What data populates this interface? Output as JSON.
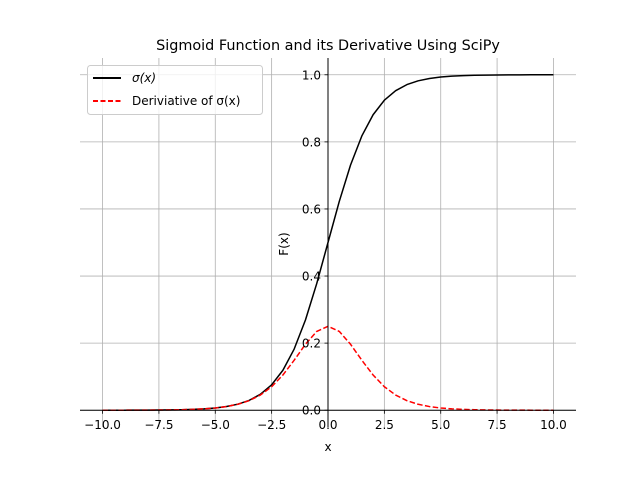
{
  "chart_data": {
    "type": "line",
    "title": "Sigmoid Function and its Derivative Using SciPy",
    "xlabel": "x",
    "ylabel": "F(x)",
    "xlim": [
      -11,
      11
    ],
    "ylim": [
      -0.05,
      1.05
    ],
    "grid": true,
    "spines": "centered at zero",
    "legend_position": "upper-left",
    "x_ticks": [
      -10,
      -7.5,
      -5,
      -2.5,
      0,
      2.5,
      5,
      7.5,
      10
    ],
    "x_tick_labels": [
      "−10.0",
      "−7.5",
      "−5.0",
      "−2.5",
      "0.0",
      "2.5",
      "5.0",
      "7.5",
      "10.0"
    ],
    "y_ticks": [
      0,
      0.2,
      0.4,
      0.6,
      0.8,
      1.0
    ],
    "y_tick_labels": [
      "0.0",
      "0.2",
      "0.4",
      "0.6",
      "0.8",
      "1.0"
    ],
    "x": [
      -10,
      -9.5,
      -9,
      -8.5,
      -8,
      -7.5,
      -7,
      -6.5,
      -6,
      -5.5,
      -5,
      -4.5,
      -4,
      -3.5,
      -3,
      -2.5,
      -2,
      -1.5,
      -1,
      -0.5,
      0,
      0.5,
      1,
      1.5,
      2,
      2.5,
      3,
      3.5,
      4,
      4.5,
      5,
      5.5,
      6,
      6.5,
      7,
      7.5,
      8,
      8.5,
      9,
      9.5,
      10
    ],
    "series": [
      {
        "name": "σ(x)",
        "color": "#000000",
        "style": "solid",
        "values": [
          0.0,
          0.0001,
          0.0001,
          0.0002,
          0.0003,
          0.0006,
          0.0009,
          0.0015,
          0.0025,
          0.0041,
          0.0067,
          0.011,
          0.018,
          0.0293,
          0.0474,
          0.0759,
          0.1192,
          0.1824,
          0.2689,
          0.3775,
          0.5,
          0.6225,
          0.7311,
          0.8176,
          0.8808,
          0.9241,
          0.9526,
          0.9707,
          0.982,
          0.989,
          0.9933,
          0.9959,
          0.9975,
          0.9985,
          0.9991,
          0.9994,
          0.9997,
          0.9998,
          0.9999,
          0.9999,
          1.0
        ]
      },
      {
        "name": "Deriviative of σ(x)",
        "color": "#ff0000",
        "style": "dashed",
        "values": [
          0.0,
          0.0001,
          0.0001,
          0.0002,
          0.0003,
          0.0006,
          0.0009,
          0.0015,
          0.0025,
          0.0041,
          0.0066,
          0.0109,
          0.0177,
          0.0285,
          0.0452,
          0.0701,
          0.105,
          0.1491,
          0.1966,
          0.235,
          0.25,
          0.235,
          0.1966,
          0.1491,
          0.105,
          0.0701,
          0.0452,
          0.0285,
          0.0177,
          0.0109,
          0.0066,
          0.0041,
          0.0025,
          0.0015,
          0.0009,
          0.0006,
          0.0003,
          0.0002,
          0.0001,
          0.0001,
          0.0
        ]
      }
    ]
  }
}
